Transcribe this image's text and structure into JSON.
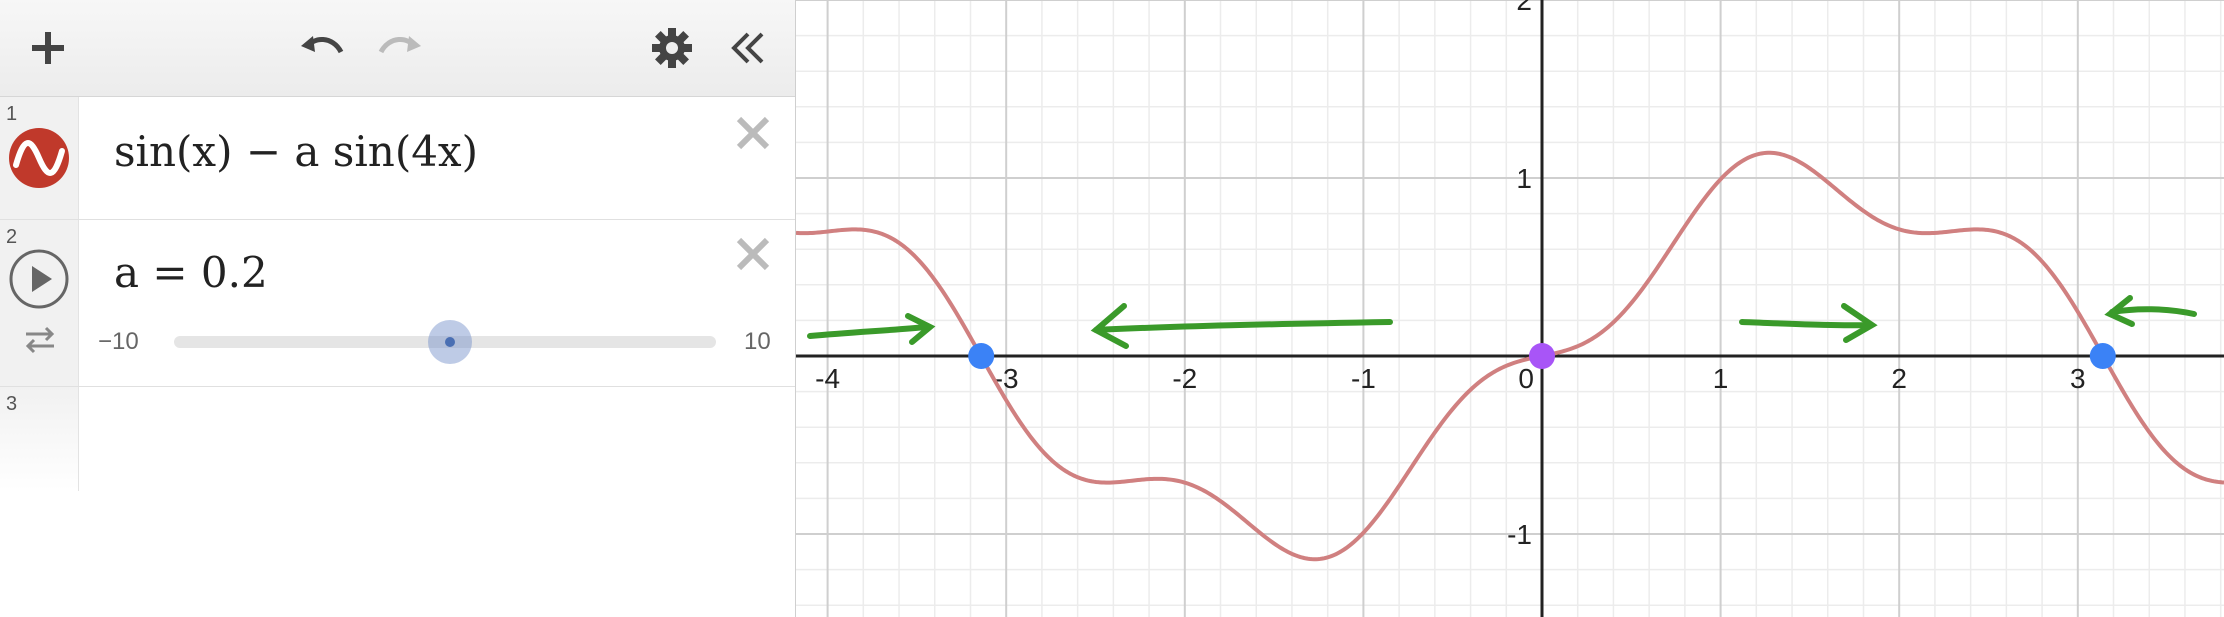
{
  "toolbar": {
    "add_icon": "plus-icon",
    "undo_icon": "undo-icon",
    "redo_icon": "redo-icon",
    "settings_icon": "gear-icon",
    "collapse_icon": "double-chevron-left-icon"
  },
  "expressions": [
    {
      "index": "1",
      "text": "sin(x) − a sin(4x)",
      "icon": "wave-icon",
      "color": "#c0392b"
    },
    {
      "index": "2",
      "text": "a = 0.2",
      "icon": "play-icon",
      "slider": {
        "min_label": "−10",
        "max_label": "10",
        "min": -10,
        "max": 10,
        "value": 0.2
      }
    },
    {
      "index": "3",
      "text": ""
    }
  ],
  "graph": {
    "x_ticks": [
      "-4",
      "-3",
      "-2",
      "-1",
      "0",
      "1",
      "2",
      "3"
    ],
    "y_ticks": [
      "2",
      "1",
      "-1"
    ],
    "curve_color": "#d08080",
    "points": [
      {
        "x": -3.14,
        "y": 0,
        "color": "#3b82f6"
      },
      {
        "x": 0,
        "y": 0,
        "color": "#a855f7"
      },
      {
        "x": 3.14,
        "y": 0,
        "color": "#3b82f6"
      }
    ],
    "arrow_color": "#3a9a2a"
  }
}
